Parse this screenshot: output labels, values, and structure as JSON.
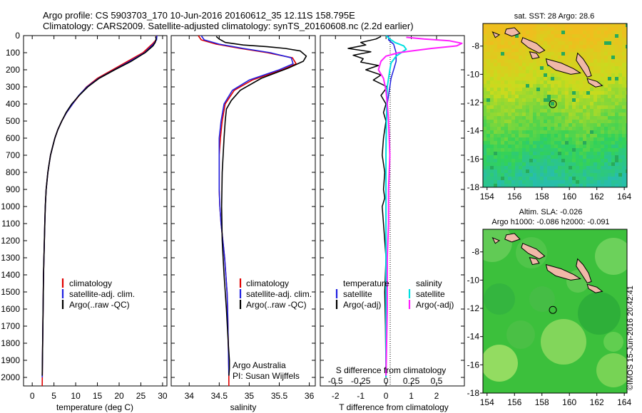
{
  "titles": {
    "line1": "Argo profile: CS 5903703_170 10-Jun-2016 20160612_35 12.11S 158.795E",
    "line2": "Climatology: CARS2009. Satellite-adjusted climatology: synTS_20160608.nc (2.2d earlier)"
  },
  "colors": {
    "climatology": "#e00000",
    "satellite_adj": "#2020e0",
    "argo": "#000000",
    "sal_satellite": "#00e0e0",
    "sal_argo": "#ff20ff",
    "land": "#f0b8a8"
  },
  "credit": "©IMOS 15-Jun-2016 20:42:41",
  "chart_data": [
    {
      "type": "line",
      "name": "temperature profile",
      "xlabel": "temperature (deg C)",
      "ylabel": "",
      "xlim": [
        -2,
        31
      ],
      "ylim": [
        2050,
        0
      ],
      "xticks": [
        0,
        5,
        10,
        15,
        20,
        25,
        30
      ],
      "yticks": [
        0,
        100,
        200,
        300,
        400,
        500,
        600,
        700,
        800,
        900,
        1000,
        1100,
        1200,
        1300,
        1400,
        1500,
        1600,
        1700,
        1800,
        1900,
        2000
      ],
      "legend": [
        "climatology",
        "satellite-adj. clim.",
        "Argo(..raw -QC)"
      ],
      "series": [
        {
          "name": "climatology",
          "x": [
            28.6,
            28.5,
            27.6,
            25.5,
            22.0,
            18.5,
            15.0,
            12.5,
            10.8,
            9.3,
            7.9,
            6.8,
            5.9,
            5.2,
            4.7,
            4.2,
            3.9,
            3.6,
            3.4,
            3.2,
            3.0,
            2.9,
            2.8,
            2.7,
            2.6,
            2.55,
            2.5,
            2.45,
            2.4,
            2.35,
            2.3
          ],
          "y": [
            0,
            25,
            50,
            100,
            150,
            200,
            250,
            300,
            350,
            400,
            450,
            500,
            550,
            600,
            650,
            700,
            750,
            800,
            850,
            900,
            1000,
            1100,
            1200,
            1300,
            1400,
            1500,
            1600,
            1700,
            1800,
            1900,
            2050
          ]
        },
        {
          "name": "satellite-adj. clim.",
          "x": [
            28.7,
            28.6,
            27.9,
            25.9,
            22.5,
            18.9,
            15.3,
            12.6,
            10.7,
            9.3,
            7.9,
            6.8,
            5.9,
            5.2,
            4.7,
            4.2,
            3.9,
            3.6,
            3.4,
            3.2,
            3.0,
            2.9,
            2.8,
            2.7,
            2.6,
            2.55,
            2.5,
            2.45,
            2.4,
            2.35,
            2.3
          ],
          "y": [
            0,
            25,
            50,
            100,
            150,
            200,
            250,
            300,
            350,
            400,
            450,
            500,
            550,
            600,
            650,
            700,
            750,
            800,
            850,
            900,
            1000,
            1100,
            1200,
            1300,
            1400,
            1500,
            1600,
            1700,
            1800,
            1900,
            2000
          ]
        },
        {
          "name": "Argo(..raw -QC)",
          "x": [
            28.4,
            28.5,
            28.3,
            27.8,
            26.0,
            22.8,
            19.0,
            15.4,
            12.8,
            10.8,
            9.1,
            7.8,
            6.8,
            5.9,
            5.2,
            4.7,
            4.2,
            3.9,
            3.6,
            3.4,
            3.2,
            3.0,
            2.9,
            2.8,
            2.7,
            2.6,
            2.5,
            2.4,
            2.35,
            2.3
          ],
          "y": [
            5,
            20,
            40,
            60,
            100,
            150,
            200,
            250,
            300,
            350,
            400,
            450,
            500,
            550,
            600,
            650,
            700,
            750,
            800,
            850,
            900,
            1000,
            1100,
            1200,
            1300,
            1400,
            1600,
            1800,
            1900,
            1990
          ]
        }
      ]
    },
    {
      "type": "line",
      "name": "salinity profile",
      "xlabel": "salinity",
      "ylabel": "",
      "xlim": [
        33.7,
        36.1
      ],
      "ylim": [
        2050,
        0
      ],
      "xticks": [
        34,
        34.5,
        35,
        35.5,
        36
      ],
      "legend": [
        "climatology",
        "satellite-adj. clim.",
        "Argo(..raw -QC)"
      ],
      "annotation": [
        "Argo Australia",
        "PI: Susan Wijffels"
      ],
      "series": [
        {
          "name": "climatology",
          "x": [
            34.15,
            34.2,
            34.45,
            34.85,
            35.3,
            35.72,
            35.78,
            35.55,
            35.05,
            34.75,
            34.6,
            34.55,
            34.52,
            34.5,
            34.5,
            34.5,
            34.51,
            34.53,
            34.56,
            34.59,
            34.61,
            34.63,
            34.64,
            34.65,
            34.66,
            34.66
          ],
          "y": [
            0,
            25,
            50,
            75,
            100,
            130,
            165,
            200,
            260,
            320,
            400,
            500,
            600,
            700,
            800,
            900,
            1000,
            1100,
            1200,
            1300,
            1400,
            1500,
            1600,
            1800,
            1950,
            2050
          ]
        },
        {
          "name": "satellite-adj. clim.",
          "x": [
            34.2,
            34.25,
            34.5,
            34.9,
            35.35,
            35.7,
            35.73,
            35.5,
            35.0,
            34.72,
            34.58,
            34.53,
            34.5,
            34.5,
            34.5,
            34.5,
            34.51,
            34.53,
            34.56,
            34.59,
            34.61,
            34.63,
            34.64,
            34.65,
            34.66
          ],
          "y": [
            0,
            25,
            50,
            75,
            100,
            130,
            165,
            200,
            260,
            320,
            400,
            500,
            600,
            700,
            800,
            900,
            1000,
            1100,
            1200,
            1300,
            1400,
            1500,
            1600,
            1800,
            1990
          ]
        },
        {
          "name": "Argo(..raw -QC)",
          "x": [
            34.45,
            34.5,
            34.6,
            34.9,
            35.3,
            35.6,
            35.85,
            35.95,
            35.9,
            35.65,
            35.2,
            34.85,
            34.7,
            34.62,
            34.6,
            34.58,
            34.55,
            34.54,
            34.55,
            34.58,
            34.62,
            34.65,
            34.66,
            34.67,
            34.67,
            34.66
          ],
          "y": [
            5,
            20,
            40,
            55,
            65,
            75,
            90,
            120,
            150,
            190,
            250,
            320,
            380,
            430,
            500,
            600,
            800,
            1000,
            1200,
            1400,
            1600,
            1800,
            1850,
            1900,
            1950,
            1990
          ]
        }
      ]
    },
    {
      "type": "line",
      "name": "difference from climatology",
      "xlabel": "T difference from climatology",
      "xlabel_top": "S difference from climatology",
      "xlim": [
        -2.6,
        3.1
      ],
      "ylim": [
        2050,
        0
      ],
      "xticks": [
        -2,
        -1,
        0,
        1,
        2
      ],
      "xticks_sal": [
        "-0.5",
        "-0.25",
        "0",
        "0.25",
        "0.5"
      ],
      "legend": {
        "temperature_header": "temperature",
        "salinity_header": "salinity",
        "items": [
          "satellite",
          "Argo(-adj)",
          "satellite",
          "Argo(-adj)"
        ]
      },
      "series": [
        {
          "name": "temperature satellite",
          "x": [
            0.1,
            0.1,
            0.3,
            0.4,
            0.4,
            0.3,
            0.2,
            0.15,
            0.1,
            0.05,
            0.02,
            0.0,
            0.0,
            0.0,
            0.0
          ],
          "y": [
            0,
            25,
            50,
            100,
            150,
            200,
            250,
            300,
            350,
            400,
            500,
            600,
            800,
            1000,
            2000
          ]
        },
        {
          "name": "temperature Argo(-adj)",
          "x": [
            -0.2,
            -0.4,
            -1.0,
            -0.8,
            -1.5,
            -0.6,
            -1.3,
            -0.9,
            -1.0,
            -0.3,
            -0.8,
            -0.2,
            -0.5,
            0.05,
            -0.2,
            0.0,
            -0.1,
            0.0,
            -0.1,
            -0.15,
            -0.05,
            -0.1,
            -0.05,
            -0.15,
            -0.1,
            -0.05,
            0.0,
            -0.05,
            -0.02,
            0.0
          ],
          "y": [
            5,
            20,
            40,
            55,
            75,
            95,
            115,
            135,
            155,
            175,
            200,
            230,
            260,
            300,
            350,
            400,
            450,
            500,
            600,
            700,
            800,
            900,
            950,
            1000,
            1100,
            1200,
            1300,
            1500,
            1700,
            1990
          ]
        },
        {
          "name": "salinity satellite",
          "x": [
            0.0,
            0.15,
            0.35,
            0.7,
            0.8,
            0.6,
            0.4,
            0.3,
            0.2,
            0.15,
            0.1,
            0.05,
            0.03,
            0.02,
            0.0,
            0.0
          ],
          "y": [
            0,
            20,
            40,
            60,
            80,
            100,
            120,
            140,
            160,
            200,
            250,
            300,
            400,
            500,
            700,
            2000
          ]
        },
        {
          "name": "salinity Argo(-adj)",
          "x": [
            0.8,
            1.5,
            2.5,
            3.0,
            2.8,
            1.8,
            1.0,
            0.5,
            0.0,
            -0.2,
            -0.3,
            -0.1,
            0.0,
            0.05,
            0.1,
            0.15,
            0.1,
            0.1,
            0.05,
            0.05,
            0.0
          ],
          "y": [
            10,
            20,
            30,
            45,
            60,
            75,
            90,
            100,
            120,
            150,
            200,
            250,
            320,
            400,
            500,
            700,
            900,
            1100,
            1300,
            1600,
            1990
          ]
        }
      ]
    },
    {
      "type": "heatmap",
      "name": "sat SST map",
      "title": "sat. SST: 28 Argo: 28.6",
      "xlim": [
        153.7,
        164.2
      ],
      "ylim": [
        -18,
        -6.4
      ],
      "xticks": [
        154,
        156,
        158,
        160,
        162,
        164
      ],
      "yticks": [
        -8,
        -10,
        -12,
        -14,
        -16,
        -18
      ],
      "marker": {
        "lon": 158.795,
        "lat": -12.11
      }
    },
    {
      "type": "heatmap",
      "name": "Altimeter SLA map",
      "title_line1": "Altim. SLA: -0.026",
      "title_line2": "Argo h1000: -0.086 h2000: -0.091",
      "xlim": [
        153.7,
        164.2
      ],
      "ylim": [
        -18,
        -6.4
      ],
      "xticks": [
        154,
        156,
        158,
        160,
        162,
        164
      ],
      "yticks": [
        -8,
        -10,
        -12,
        -14,
        -16,
        -18
      ],
      "marker": {
        "lon": 158.795,
        "lat": -12.11
      }
    }
  ]
}
